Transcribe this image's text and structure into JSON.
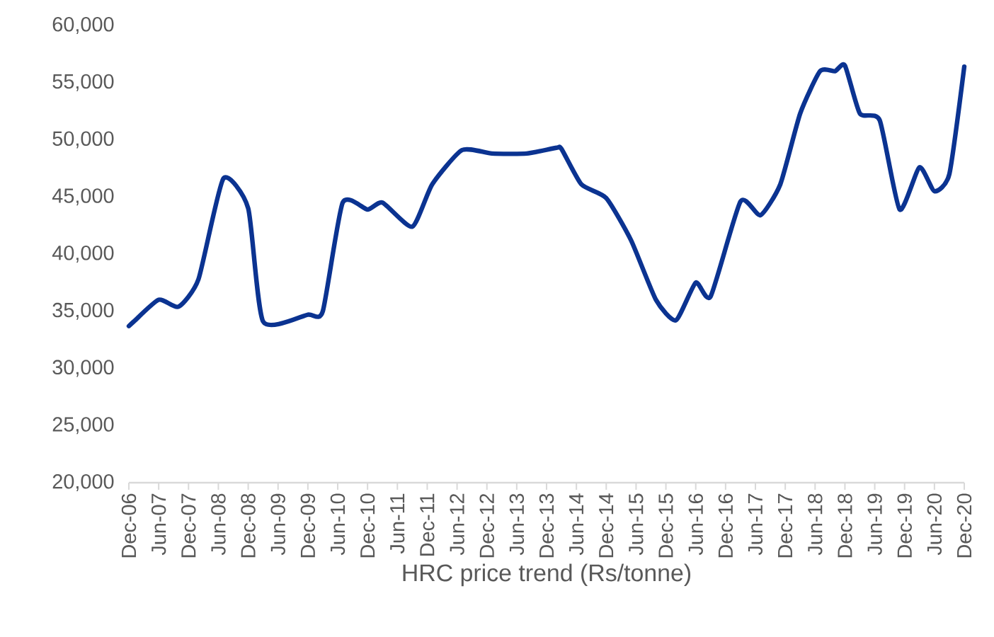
{
  "chart_data": {
    "type": "line",
    "xlabel": "HRC price trend (Rs/tonne)",
    "x": [
      "2006-12",
      "2007-01",
      "2007-06",
      "2007-10",
      "2008-02",
      "2008-07",
      "2008-12",
      "2009-03",
      "2009-12",
      "2010-03",
      "2010-07",
      "2010-12",
      "2011-03",
      "2011-09",
      "2012-01",
      "2012-07",
      "2013-01",
      "2013-08",
      "2014-02",
      "2014-03",
      "2014-07",
      "2014-12",
      "2015-05",
      "2015-10",
      "2016-02",
      "2016-06",
      "2016-09",
      "2017-03",
      "2017-07",
      "2017-11",
      "2018-03",
      "2018-07",
      "2018-10",
      "2018-12",
      "2019-03",
      "2019-07",
      "2019-11",
      "2020-03",
      "2020-06",
      "2020-09",
      "2020-12"
    ],
    "series": [
      {
        "color": "#0b3391",
        "values": [
          33700,
          34100,
          36000,
          35400,
          37800,
          46600,
          44000,
          34100,
          34700,
          35000,
          44500,
          43900,
          44500,
          42400,
          46100,
          49100,
          48800,
          48800,
          49300,
          49200,
          46100,
          44900,
          41200,
          36000,
          34200,
          37500,
          36300,
          44600,
          43400,
          46100,
          52300,
          56000,
          56000,
          56500,
          52300,
          51700,
          43900,
          47600,
          45500,
          47000,
          56400
        ]
      }
    ],
    "xlim": [
      "2006-12",
      "2020-12"
    ],
    "xticks": [
      {
        "value": "2006-12",
        "label": "Dec-06"
      },
      {
        "value": "2007-06",
        "label": "Jun-07"
      },
      {
        "value": "2007-12",
        "label": "Dec-07"
      },
      {
        "value": "2008-06",
        "label": "Jun-08"
      },
      {
        "value": "2008-12",
        "label": "Dec-08"
      },
      {
        "value": "2009-06",
        "label": "Jun-09"
      },
      {
        "value": "2009-12",
        "label": "Dec-09"
      },
      {
        "value": "2010-06",
        "label": "Jun-10"
      },
      {
        "value": "2010-12",
        "label": "Dec-10"
      },
      {
        "value": "2011-06",
        "label": "Jun-11"
      },
      {
        "value": "2011-12",
        "label": "Dec-11"
      },
      {
        "value": "2012-06",
        "label": "Jun-12"
      },
      {
        "value": "2012-12",
        "label": "Dec-12"
      },
      {
        "value": "2013-06",
        "label": "Jun-13"
      },
      {
        "value": "2013-12",
        "label": "Dec-13"
      },
      {
        "value": "2014-06",
        "label": "Jun-14"
      },
      {
        "value": "2014-12",
        "label": "Dec-14"
      },
      {
        "value": "2015-06",
        "label": "Jun-15"
      },
      {
        "value": "2015-12",
        "label": "Dec-15"
      },
      {
        "value": "2016-06",
        "label": "Jun-16"
      },
      {
        "value": "2016-12",
        "label": "Dec-16"
      },
      {
        "value": "2017-06",
        "label": "Jun-17"
      },
      {
        "value": "2017-12",
        "label": "Dec-17"
      },
      {
        "value": "2018-06",
        "label": "Jun-18"
      },
      {
        "value": "2018-12",
        "label": "Dec-18"
      },
      {
        "value": "2019-06",
        "label": "Jun-19"
      },
      {
        "value": "2019-12",
        "label": "Dec-19"
      },
      {
        "value": "2020-06",
        "label": "Jun-20"
      },
      {
        "value": "2020-12",
        "label": "Dec-20"
      }
    ],
    "ylim": [
      20000,
      60000
    ],
    "yticks": [
      {
        "value": 20000,
        "label": "20,000"
      },
      {
        "value": 25000,
        "label": "25,000"
      },
      {
        "value": 30000,
        "label": "30,000"
      },
      {
        "value": 35000,
        "label": "35,000"
      },
      {
        "value": 40000,
        "label": "40,000"
      },
      {
        "value": 45000,
        "label": "45,000"
      },
      {
        "value": 50000,
        "label": "50,000"
      },
      {
        "value": 55000,
        "label": "55,000"
      },
      {
        "value": 60000,
        "label": "60,000"
      }
    ],
    "grid": false,
    "marker": "none",
    "line_style": "solid"
  }
}
